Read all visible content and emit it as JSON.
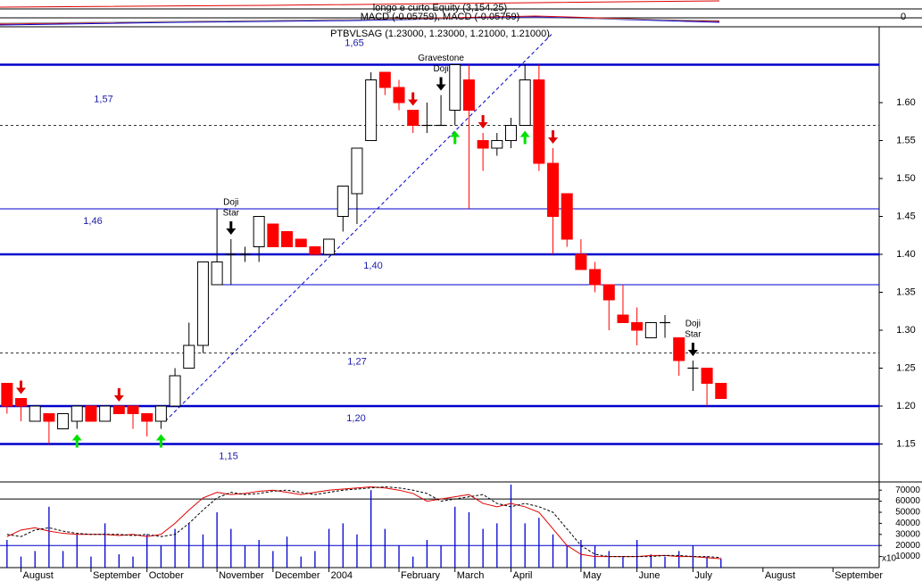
{
  "chart_data": {
    "type": "candlestick",
    "title": "PTBVLSAG (1.23000, 1.23000, 1.21000, 1.21000)",
    "equity_label": "longo e curto Equity (3,154.25)",
    "macd_label": "MACD (-0.05759), MACD (-0.05759)",
    "macd_yticks": [
      0
    ],
    "xlim": [
      -0.5,
      62.3
    ],
    "xticks": [
      {
        "value": 1,
        "label": "August"
      },
      {
        "value": 6,
        "label": "September"
      },
      {
        "value": 10,
        "label": "October"
      },
      {
        "value": 15,
        "label": "November"
      },
      {
        "value": 19,
        "label": "December"
      },
      {
        "value": 23,
        "label": "2004"
      },
      {
        "value": 28,
        "label": "February"
      },
      {
        "value": 32,
        "label": "March"
      },
      {
        "value": 36,
        "label": "April"
      },
      {
        "value": 41,
        "label": "May"
      },
      {
        "value": 45,
        "label": "June"
      },
      {
        "value": 49,
        "label": "July"
      },
      {
        "value": 54,
        "label": "August"
      },
      {
        "value": 59,
        "label": "September"
      }
    ],
    "ylim": [
      1.1,
      1.7
    ],
    "yticks": [
      1.15,
      {
        "value": 1.2,
        "label": "1.20"
      },
      1.25,
      {
        "value": 1.3,
        "label": "1.30"
      },
      1.35,
      {
        "value": 1.4,
        "label": "1.40"
      },
      1.45,
      {
        "value": 1.5,
        "label": "1.50"
      },
      1.55,
      {
        "value": 1.6,
        "label": "1.60"
      }
    ],
    "up_color": "#ffffff",
    "down_color": "#ff0000",
    "open": [
      1.23,
      1.21,
      1.18,
      1.19,
      1.17,
      1.18,
      1.2,
      1.18,
      1.2,
      1.2,
      1.19,
      1.18,
      1.2,
      1.25,
      1.28,
      1.36,
      1.4,
      1.4,
      1.41,
      1.44,
      1.43,
      1.42,
      1.41,
      1.4,
      1.45,
      1.48,
      1.55,
      1.64,
      1.62,
      1.59,
      1.57,
      1.57,
      1.59,
      1.63,
      1.55,
      1.54,
      1.55,
      1.57,
      1.63,
      1.52,
      1.48,
      1.4,
      1.38,
      1.36,
      1.32,
      1.31,
      1.29,
      1.31,
      1.29,
      1.25,
      1.25,
      1.23
    ],
    "high": [
      1.23,
      1.21,
      1.2,
      1.19,
      1.19,
      1.2,
      1.2,
      1.2,
      1.2,
      1.2,
      1.19,
      1.2,
      1.25,
      1.31,
      1.39,
      1.46,
      1.42,
      1.41,
      1.45,
      1.44,
      1.43,
      1.42,
      1.41,
      1.42,
      1.49,
      1.54,
      1.64,
      1.64,
      1.63,
      1.59,
      1.6,
      1.61,
      1.65,
      1.65,
      1.56,
      1.56,
      1.58,
      1.65,
      1.65,
      1.54,
      1.48,
      1.42,
      1.39,
      1.36,
      1.36,
      1.33,
      1.31,
      1.32,
      1.29,
      1.26,
      1.25,
      1.23
    ],
    "low": [
      1.19,
      1.18,
      1.18,
      1.15,
      1.17,
      1.17,
      1.18,
      1.18,
      1.19,
      1.17,
      1.16,
      1.17,
      1.2,
      1.25,
      1.27,
      1.36,
      1.36,
      1.39,
      1.39,
      1.41,
      1.41,
      1.41,
      1.4,
      1.4,
      1.43,
      1.44,
      1.55,
      1.61,
      1.59,
      1.56,
      1.56,
      1.57,
      1.57,
      1.46,
      1.51,
      1.53,
      1.54,
      1.57,
      1.51,
      1.4,
      1.41,
      1.38,
      1.35,
      1.3,
      1.31,
      1.28,
      1.29,
      1.29,
      1.24,
      1.22,
      1.2,
      1.21
    ],
    "close": [
      1.2,
      1.2,
      1.2,
      1.18,
      1.19,
      1.2,
      1.18,
      1.2,
      1.19,
      1.19,
      1.18,
      1.2,
      1.24,
      1.28,
      1.39,
      1.39,
      1.4,
      1.4,
      1.45,
      1.41,
      1.41,
      1.41,
      1.4,
      1.42,
      1.49,
      1.54,
      1.63,
      1.62,
      1.6,
      1.57,
      1.57,
      1.57,
      1.65,
      1.59,
      1.54,
      1.55,
      1.57,
      1.63,
      1.52,
      1.45,
      1.42,
      1.38,
      1.36,
      1.34,
      1.31,
      1.3,
      1.31,
      1.31,
      1.26,
      1.25,
      1.23,
      1.21
    ],
    "levels": [
      {
        "value": 1.65,
        "label": "1,65",
        "style": "thick"
      },
      {
        "value": 1.57,
        "label": "1,57",
        "style": "dotted"
      },
      {
        "value": 1.46,
        "label": "1,46",
        "style": "thin"
      },
      {
        "value": 1.4,
        "label": "1,40",
        "style": "thick"
      },
      {
        "value": 1.36,
        "style": "thin"
      },
      {
        "value": 1.27,
        "label": "1,27",
        "style": "dotted"
      },
      {
        "value": 1.2,
        "label": "1,20",
        "style": "thick"
      },
      {
        "value": 1.15,
        "label": "1,15",
        "style": "thick"
      }
    ],
    "trendline": {
      "x": [
        11.3,
        38.9
      ],
      "y": [
        1.18,
        1.69
      ]
    },
    "signals": [
      {
        "index": 1,
        "kind": "sell"
      },
      {
        "index": 8,
        "kind": "sell"
      },
      {
        "index": 29,
        "kind": "sell"
      },
      {
        "index": 34,
        "kind": "sell"
      },
      {
        "index": 39,
        "kind": "sell"
      },
      {
        "index": 5,
        "kind": "buy"
      },
      {
        "index": 11,
        "kind": "buy"
      },
      {
        "index": 32,
        "kind": "buy"
      },
      {
        "index": 37,
        "kind": "buy"
      },
      {
        "index": 16,
        "kind": "pattern",
        "label": [
          "Doji",
          "Star"
        ]
      },
      {
        "index": 31,
        "kind": "pattern",
        "label": [
          "Gravestone",
          "Doji"
        ]
      },
      {
        "index": 49,
        "kind": "pattern",
        "label": [
          "Doji",
          "Star"
        ]
      }
    ],
    "volume": {
      "color": "#0000cc",
      "values": [
        25000,
        10000,
        15000,
        55000,
        15000,
        30000,
        10000,
        40000,
        12000,
        10000,
        30000,
        20000,
        35000,
        40000,
        30000,
        50000,
        35000,
        20000,
        25000,
        15000,
        28000,
        10000,
        15000,
        35000,
        40000,
        30000,
        70000,
        35000,
        20000,
        10000,
        25000,
        20000,
        55000,
        50000,
        35000,
        40000,
        75000,
        40000,
        45000,
        30000,
        20000,
        25000,
        20000,
        15000,
        10000,
        25000,
        12000,
        10000,
        15000,
        20000,
        10000,
        8000
      ],
      "ylim": [
        0,
        75000
      ],
      "yticks": [
        10000,
        20000,
        30000,
        40000,
        50000,
        60000,
        70000
      ],
      "unit_label": "x10",
      "reference_lines": [
        {
          "value": 62000,
          "color": "#000000"
        },
        {
          "value": 20000,
          "color": "#0000cc"
        }
      ],
      "oscillator": [
        {
          "color": "#e00000",
          "dashed": false,
          "values": [
            28000,
            34000,
            36000,
            33000,
            31000,
            30000,
            30000,
            30000,
            29000,
            30000,
            28000,
            30000,
            40000,
            52000,
            63000,
            68000,
            66000,
            67000,
            69000,
            70000,
            68000,
            66000,
            68000,
            70000,
            71000,
            72000,
            73000,
            72000,
            70000,
            67000,
            60000,
            62000,
            64000,
            66000,
            58000,
            55000,
            58000,
            55000,
            50000,
            35000,
            20000,
            12000,
            10000,
            10000,
            10000,
            10000,
            11000,
            11000,
            10000,
            10000,
            9000,
            8000
          ]
        },
        {
          "color": "#000000",
          "dashed": true,
          "values": [
            30000,
            28000,
            34000,
            36000,
            33000,
            31000,
            30000,
            30000,
            30000,
            29000,
            30000,
            28000,
            30000,
            40000,
            52000,
            63000,
            68000,
            66000,
            67000,
            69000,
            70000,
            68000,
            66000,
            68000,
            70000,
            71000,
            72000,
            73000,
            72000,
            70000,
            67000,
            60000,
            62000,
            64000,
            66000,
            58000,
            55000,
            58000,
            55000,
            50000,
            35000,
            20000,
            12000,
            10000,
            10000,
            10000,
            10000,
            11000,
            11000,
            10000,
            10000,
            9000
          ]
        }
      ]
    }
  }
}
